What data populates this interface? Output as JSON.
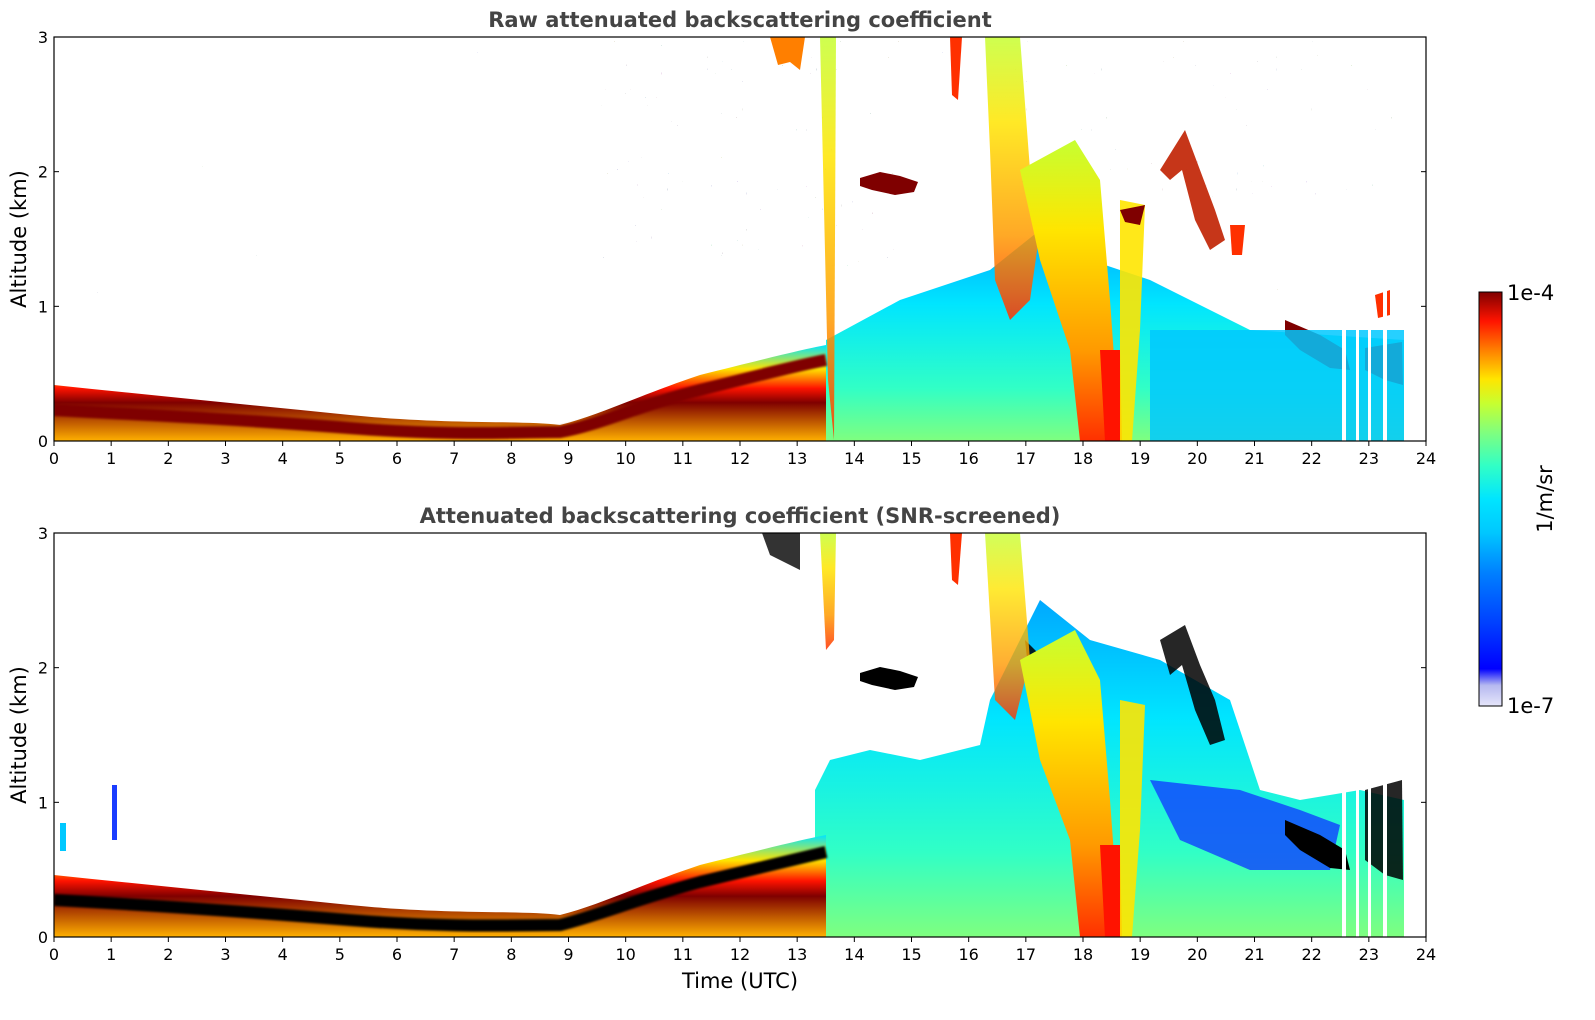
{
  "colors": {
    "jet": [
      "#00007f",
      "#0000ff",
      "#007fff",
      "#00e5ff",
      "#31ffc6",
      "#7fff7f",
      "#c6ff31",
      "#ffe500",
      "#ff7f00",
      "#ff1300",
      "#7f0000"
    ],
    "lowest_bins": [
      "#e6e6fa",
      "#b6b9f0",
      "#8a90ea"
    ],
    "saturation": "#000000",
    "title": "#444444"
  },
  "colorbar": {
    "label": "1/m/sr",
    "max_label": "1e-4",
    "min_label": "1e-7"
  },
  "chart_data": [
    {
      "type": "heatmap",
      "title": "Raw attenuated backscattering coefficient",
      "xlabel": "",
      "ylabel": "Altitude (km)",
      "xlim": [
        0,
        24
      ],
      "ylim": [
        0,
        3
      ],
      "xticks": [
        "0",
        "1",
        "2",
        "3",
        "4",
        "5",
        "6",
        "7",
        "8",
        "9",
        "10",
        "11",
        "12",
        "13",
        "14",
        "15",
        "16",
        "17",
        "18",
        "19",
        "20",
        "21",
        "22",
        "23",
        "24"
      ],
      "yticks": [
        "0",
        "1",
        "2",
        "3"
      ],
      "colorbar_range": [
        "1e-7",
        "1e-4"
      ],
      "colorbar_units": "1/m/sr",
      "boundary_layer_top_km": [
        [
          0,
          0.3
        ],
        [
          4,
          0.22
        ],
        [
          8,
          0.2
        ],
        [
          9,
          0.18
        ],
        [
          10,
          0.3
        ],
        [
          12,
          0.45
        ],
        [
          13.5,
          0.6
        ]
      ],
      "elevated_layers": [
        {
          "time_utc": [
            14.1,
            15.1
          ],
          "altitude_km": [
            1.85,
            2.0
          ]
        },
        {
          "time_utc": [
            19.6,
            20.6
          ],
          "altitude_km": [
            1.6,
            2.25
          ]
        },
        {
          "time_utc": [
            21.7,
            23.6
          ],
          "altitude_km": [
            0.5,
            1.0
          ]
        }
      ],
      "data_end_utc": 23.6
    },
    {
      "type": "heatmap",
      "title": "Attenuated backscattering coefficient (SNR-screened)",
      "xlabel": "Time (UTC)",
      "ylabel": "Altitude (km)",
      "xlim": [
        0,
        24
      ],
      "ylim": [
        0,
        3
      ],
      "xticks": [
        "0",
        "1",
        "2",
        "3",
        "4",
        "5",
        "6",
        "7",
        "8",
        "9",
        "10",
        "11",
        "12",
        "13",
        "14",
        "15",
        "16",
        "17",
        "18",
        "19",
        "20",
        "21",
        "22",
        "23",
        "24"
      ],
      "yticks": [
        "0",
        "1",
        "2",
        "3"
      ],
      "colorbar_range": [
        "1e-7",
        "1e-4"
      ],
      "colorbar_units": "1/m/sr",
      "screened": true,
      "data_end_utc": 23.6
    }
  ]
}
